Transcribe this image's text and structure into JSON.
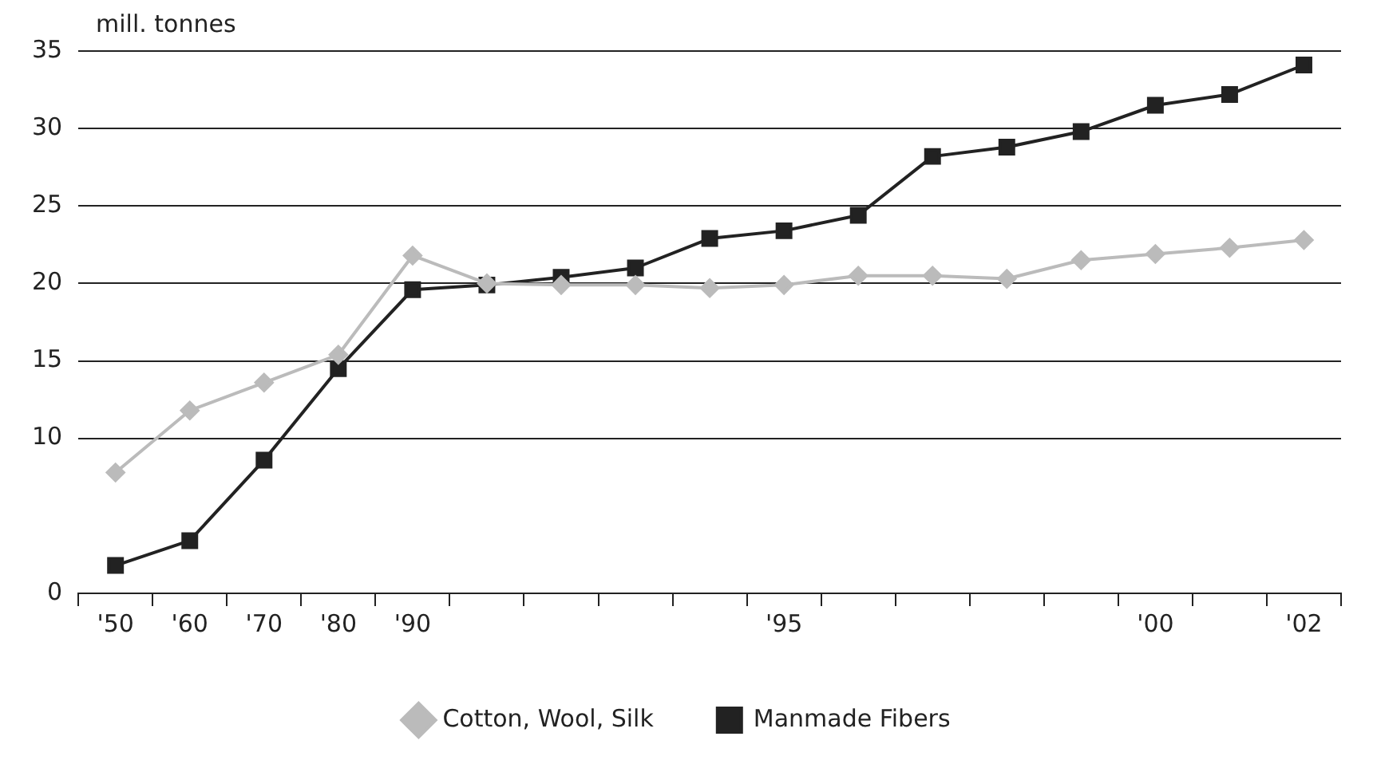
{
  "chart_data": {
    "type": "line",
    "ylabel": "mill. tonnes",
    "categories": [
      "'50",
      "'60",
      "'70",
      "'80",
      "'90",
      null,
      null,
      null,
      null,
      "'95",
      null,
      null,
      null,
      null,
      "'00",
      null,
      "'02"
    ],
    "series": [
      {
        "name": "Cotton, Wool, Silk",
        "color": "#bbbbbb",
        "marker": "diamond",
        "values": [
          7.8,
          11.8,
          13.6,
          15.4,
          21.8,
          20.0,
          19.9,
          19.9,
          19.7,
          19.9,
          20.5,
          20.5,
          20.3,
          21.5,
          21.9,
          22.3,
          22.8
        ]
      },
      {
        "name": "Manmade Fibers",
        "color": "#222222",
        "marker": "square",
        "values": [
          1.8,
          3.4,
          8.6,
          14.5,
          19.6,
          19.9,
          20.4,
          21.0,
          22.9,
          23.4,
          24.4,
          28.2,
          28.8,
          29.8,
          31.5,
          32.2,
          34.1
        ]
      }
    ],
    "ylim": [
      0,
      35
    ],
    "yticks": [
      0,
      10,
      15,
      20,
      25,
      30,
      35
    ],
    "grid": "y",
    "legend": "bottom",
    "line_style": "solid"
  }
}
